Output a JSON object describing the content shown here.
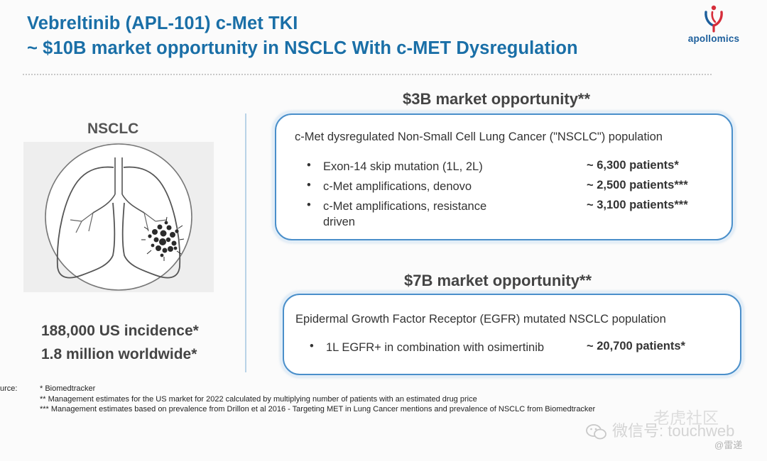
{
  "header": {
    "title_line1": "Vebreltinib (APL-101) c-Met TKI",
    "title_line2": "~ $10B market opportunity in NSCLC With c-MET Dysregulation",
    "logo_text": "apollomics"
  },
  "left_panel": {
    "label": "NSCLC",
    "us_incidence": "188,000 US incidence*",
    "worldwide": "1.8 million worldwide*"
  },
  "markets": [
    {
      "heading": "$3B market opportunity**",
      "population": "c-Met dysregulated Non-Small Cell Lung Cancer (\"NSCLC\") population",
      "rows": [
        {
          "label": "Exon-14 skip mutation (1L, 2L)",
          "value": "~ 6,300 patients*"
        },
        {
          "label": "c-Met amplifications, denovo",
          "value": "~ 2,500 patients***"
        },
        {
          "label": "c-Met amplifications, resistance driven",
          "value": "~ 3,100 patients***"
        }
      ]
    },
    {
      "heading": "$7B market opportunity**",
      "population": "Epidermal Growth Factor Receptor (EGFR) mutated NSCLC population",
      "rows": [
        {
          "label": "1L EGFR+ in combination with osimertinib",
          "value": "~ 20,700 patients*"
        }
      ]
    }
  ],
  "sources": {
    "label": "urce:",
    "notes": [
      "* Biomedtracker",
      "** Management estimates for the US market for 2022 calculated by multiplying number of patients with an estimated drug price",
      "*** Management estimates based on prevalence from Drillon et al 2016 - Targeting MET in Lung Cancer mentions and prevalence of NSCLC from Biomedtracker"
    ]
  },
  "watermark": {
    "line1": "老虎社区",
    "line2": "微信号: touchweb",
    "handle": "@雷递"
  },
  "colors": {
    "title": "#1a6fa7",
    "card_border": "#4a8fca",
    "logo_red": "#d62d3a"
  },
  "bullet_char": "•"
}
